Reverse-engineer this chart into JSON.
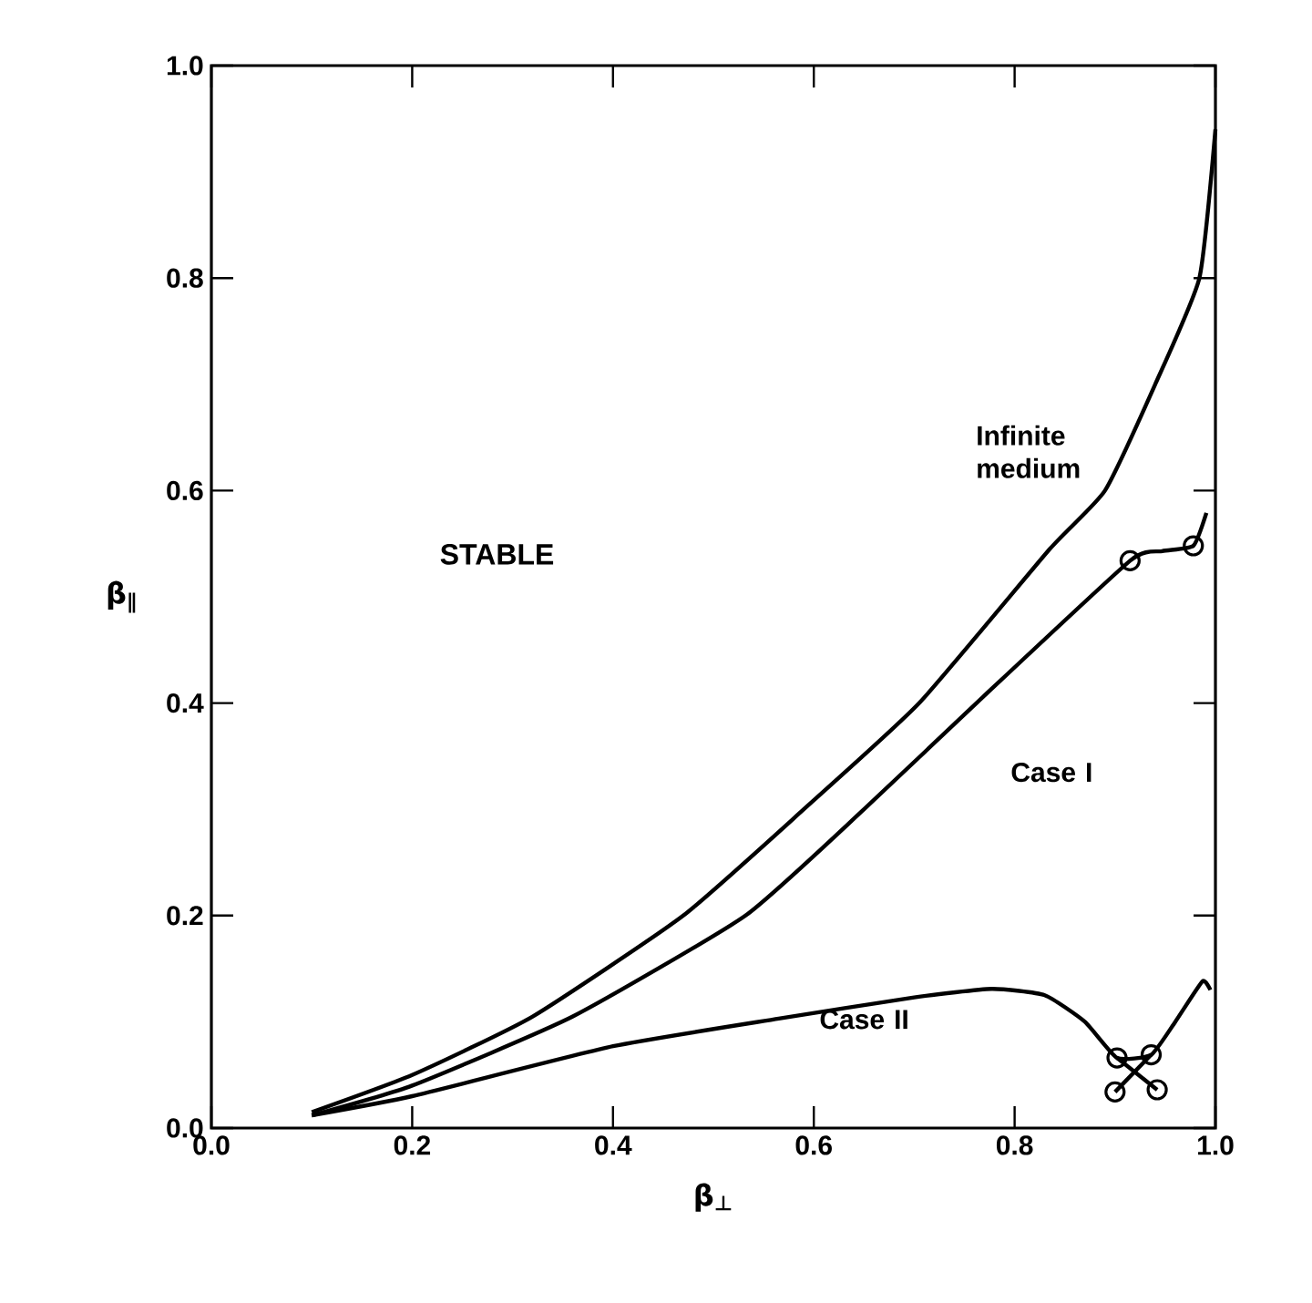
{
  "chart_data": {
    "type": "line",
    "xlabel": "β$_{⊥}$",
    "ylabel": "β$_{∥}$",
    "xlim": [
      0,
      1
    ],
    "ylim": [
      0,
      1
    ],
    "xticks": [
      {
        "value": 0,
        "label": "0.0"
      },
      {
        "value": 0.2,
        "label": "0.2"
      },
      {
        "value": 0.4,
        "label": "0.4"
      },
      {
        "value": 0.6,
        "label": "0.6"
      },
      {
        "value": 0.8,
        "label": "0.8"
      },
      {
        "value": 1,
        "label": "1.0"
      }
    ],
    "yticks": [
      {
        "value": 0,
        "label": "0.0"
      },
      {
        "value": 0.2,
        "label": "0.2"
      },
      {
        "value": 0.4,
        "label": "0.4"
      },
      {
        "value": 0.6,
        "label": "0.6"
      },
      {
        "value": 0.8,
        "label": "0.8"
      },
      {
        "value": 1,
        "label": "1.0"
      }
    ],
    "annotations": [
      "STABLE"
    ],
    "line_style": "solid",
    "series": [
      {
        "name": "Infinite medium",
        "color": "#000000",
        "marker": "none",
        "x": [
          0.1,
          0.2,
          0.32,
          0.47,
          0.59,
          0.705,
          0.835,
          0.89,
          0.94,
          0.984,
          1.0
        ],
        "values": [
          0.015,
          0.05,
          0.105,
          0.2,
          0.3,
          0.4,
          0.545,
          0.6,
          0.7,
          0.8,
          0.94
        ]
      },
      {
        "name": "Case I",
        "color": "#000000",
        "marker": "none",
        "x": [
          0.1,
          0.2,
          0.36,
          0.532,
          0.65,
          0.762,
          0.915,
          0.947,
          0.978,
          0.991
        ],
        "values": [
          0.012,
          0.04,
          0.105,
          0.2,
          0.3,
          0.4,
          0.534,
          0.543,
          0.548,
          0.579
        ]
      },
      {
        "name": "Case II",
        "color": "#000000",
        "marker": "none",
        "x": [
          0.1,
          0.2,
          0.4,
          0.565,
          0.7,
          0.777,
          0.83,
          0.87,
          0.902,
          0.936,
          0.96,
          0.987,
          0.995
        ],
        "values": [
          0.012,
          0.03,
          0.077,
          0.103,
          0.123,
          0.131,
          0.125,
          0.1,
          0.066,
          0.069,
          0.1,
          0.138,
          0.13
        ]
      },
      {
        "color": "#000000",
        "marker": "none",
        "x": [
          0.902,
          0.942
        ],
        "values": [
          0.066,
          0.036
        ]
      },
      {
        "color": "#000000",
        "marker": "none",
        "x": [
          0.936,
          0.9
        ],
        "values": [
          0.069,
          0.034
        ]
      },
      {
        "type": "scatter",
        "color": "#000000",
        "marker": "circle",
        "x": [
          0.915,
          0.978,
          0.902,
          0.936,
          0.9,
          0.942
        ],
        "values": [
          0.534,
          0.548,
          0.066,
          0.069,
          0.034,
          0.036
        ]
      }
    ]
  }
}
